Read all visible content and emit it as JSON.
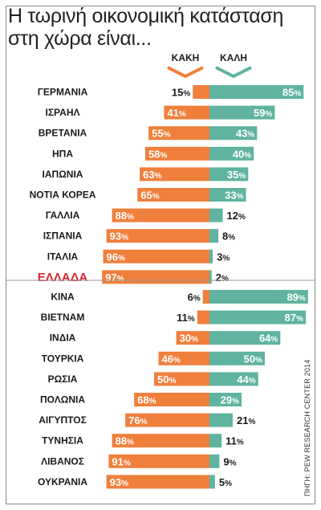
{
  "title": {
    "line1": "Η τωρινή οικονομική κατάσταση",
    "line2": "στη χώρα είναι..."
  },
  "source": "ΠΗΓΗ: PEW RESEARCH CENTER 2014",
  "colors": {
    "bad": "#f07f3c",
    "good": "#5fb3a0",
    "highlight": "#d6262f"
  },
  "chart_data": {
    "type": "bar",
    "orientation": "horizontal-diverging",
    "series": [
      {
        "name": "ΚΑΚΗ",
        "direction": "left",
        "color": "#f07f3c"
      },
      {
        "name": "ΚΑΛΗ",
        "direction": "right",
        "color": "#5fb3a0"
      }
    ],
    "unit": "%",
    "groups": [
      [
        {
          "country": "ΓΕΡΜΑΝΙΑ",
          "bad": 15,
          "good": 85
        },
        {
          "country": "ΙΣΡΑΗΛ",
          "bad": 41,
          "good": 59
        },
        {
          "country": "ΒΡΕΤΑΝΙΑ",
          "bad": 55,
          "good": 43
        },
        {
          "country": "ΗΠΑ",
          "bad": 58,
          "good": 40
        },
        {
          "country": "ΙΑΠΩΝΙΑ",
          "bad": 63,
          "good": 35
        },
        {
          "country": "ΝΟΤΙΑ ΚΟΡΕΑ",
          "bad": 65,
          "good": 33
        },
        {
          "country": "ΓΑΛΛΙΑ",
          "bad": 88,
          "good": 12
        },
        {
          "country": "ΙΣΠΑΝΙΑ",
          "bad": 93,
          "good": 8
        },
        {
          "country": "ΙΤΑΛΙΑ",
          "bad": 96,
          "good": 3
        },
        {
          "country": "ΕΛΛΑΔΑ",
          "bad": 97,
          "good": 2,
          "highlight": true
        }
      ],
      [
        {
          "country": "ΚΙΝΑ",
          "bad": 6,
          "good": 89
        },
        {
          "country": "ΒΙΕΤΝΑΜ",
          "bad": 11,
          "good": 87
        },
        {
          "country": "ΙΝΔΙΑ",
          "bad": 30,
          "good": 64
        },
        {
          "country": "ΤΟΥΡΚΙΑ",
          "bad": 46,
          "good": 50
        },
        {
          "country": "ΡΩΣΙΑ",
          "bad": 50,
          "good": 44
        },
        {
          "country": "ΠΟΛΩΝΙΑ",
          "bad": 68,
          "good": 29
        },
        {
          "country": "ΑΙΓΥΠΤΟΣ",
          "bad": 76,
          "good": 21
        },
        {
          "country": "ΤΥΝΗΣΙΑ",
          "bad": 88,
          "good": 11
        },
        {
          "country": "ΛΙΒΑΝΟΣ",
          "bad": 91,
          "good": 9
        },
        {
          "country": "ΟΥΚΡΑΝΙΑ",
          "bad": 93,
          "good": 5
        }
      ]
    ]
  }
}
